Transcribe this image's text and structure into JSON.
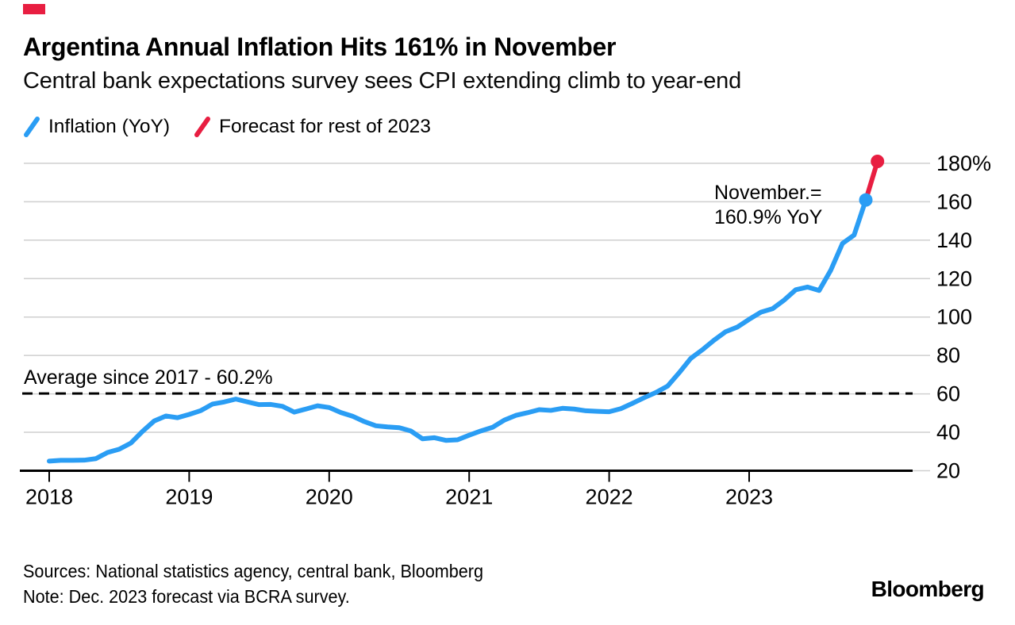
{
  "accent_color": "#e81e41",
  "header": {
    "title": "Argentina Annual Inflation Hits 161% in November",
    "subtitle": "Central bank expectations survey sees CPI extending climb to year-end"
  },
  "legend": {
    "items": [
      {
        "label": "Inflation (YoY)",
        "color": "#2a9df4"
      },
      {
        "label": "Forecast for rest of 2023",
        "color": "#e81e41"
      }
    ]
  },
  "chart_data": {
    "type": "line",
    "title": "Argentina Annual Inflation Hits 161% in November",
    "x_axis": {
      "unit": "month",
      "start": "2018-01",
      "end": "2023-12",
      "tick_years": [
        "2018",
        "2019",
        "2020",
        "2021",
        "2022",
        "2023"
      ]
    },
    "y_axis": {
      "min": 20,
      "max": 185,
      "ticks": [
        180,
        160,
        140,
        120,
        100,
        80,
        60,
        40,
        20
      ],
      "tick_labels": [
        "180%",
        "160",
        "140",
        "120",
        "100",
        "80",
        "60",
        "40",
        "20"
      ]
    },
    "grid": true,
    "legend_position": "top",
    "series": [
      {
        "name": "Inflation (YoY)",
        "color": "#2a9df4",
        "start_month_index": 0,
        "end_dot": true,
        "values": [
          25.0,
          25.4,
          25.4,
          25.5,
          26.3,
          29.5,
          31.2,
          34.4,
          40.5,
          45.9,
          48.5,
          47.6,
          49.3,
          51.3,
          54.7,
          55.8,
          57.3,
          55.8,
          54.4,
          54.5,
          53.5,
          50.5,
          52.1,
          53.8,
          52.9,
          50.3,
          48.4,
          45.6,
          43.4,
          42.8,
          42.4,
          40.7,
          36.6,
          37.2,
          35.8,
          36.1,
          38.5,
          40.7,
          42.6,
          46.3,
          48.8,
          50.2,
          51.8,
          51.4,
          52.5,
          52.1,
          51.2,
          50.9,
          50.7,
          52.3,
          55.1,
          58.0,
          60.7,
          64.0,
          71.0,
          78.5,
          83.0,
          88.0,
          92.4,
          94.8,
          98.8,
          102.5,
          104.3,
          108.8,
          114.2,
          115.6,
          113.8,
          124.4,
          138.3,
          142.7,
          160.9
        ]
      },
      {
        "name": "Forecast for rest of 2023",
        "color": "#e81e41",
        "start_month_index": 70,
        "end_dot": true,
        "values": [
          160.9,
          181.0
        ]
      }
    ],
    "average_line": {
      "value": 60.2,
      "label": "Average since 2017 - 60.2%",
      "style": "dashed"
    },
    "annotation": {
      "line1": "November.=",
      "line2": "160.9% YoY"
    }
  },
  "footer": {
    "sources": "Sources: National statistics agency, central bank, Bloomberg",
    "note": "Note: Dec. 2023 forecast via BCRA survey.",
    "logo": "Bloomberg"
  }
}
